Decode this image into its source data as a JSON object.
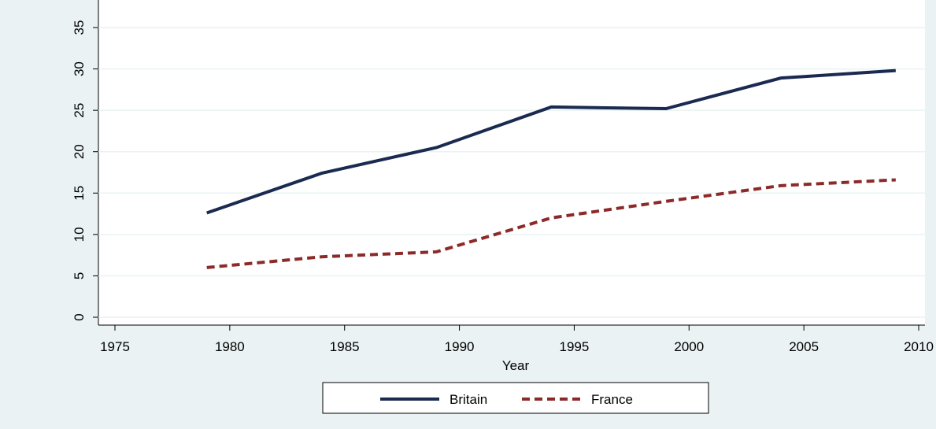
{
  "chart_data": {
    "type": "line",
    "x": [
      1979,
      1984,
      1989,
      1994,
      1999,
      2004,
      2009
    ],
    "series": [
      {
        "name": "Britain",
        "color": "#1a2a50",
        "dash": "solid",
        "values": [
          12.6,
          17.4,
          20.5,
          25.4,
          25.2,
          28.9,
          29.8
        ]
      },
      {
        "name": "France",
        "color": "#8c2a2a",
        "dash": "dashed",
        "values": [
          6.0,
          7.3,
          7.9,
          12.0,
          14.0,
          15.9,
          16.6
        ]
      }
    ],
    "x_label": "Year",
    "xlim": [
      1975,
      2010
    ],
    "xticks": [
      1975,
      1980,
      1985,
      1990,
      1995,
      2000,
      2005,
      2010
    ],
    "ylim": [
      0,
      35
    ],
    "yticks": [
      0,
      5,
      10,
      15,
      20,
      25,
      30,
      35
    ],
    "grid": true,
    "legend": "bottom"
  }
}
